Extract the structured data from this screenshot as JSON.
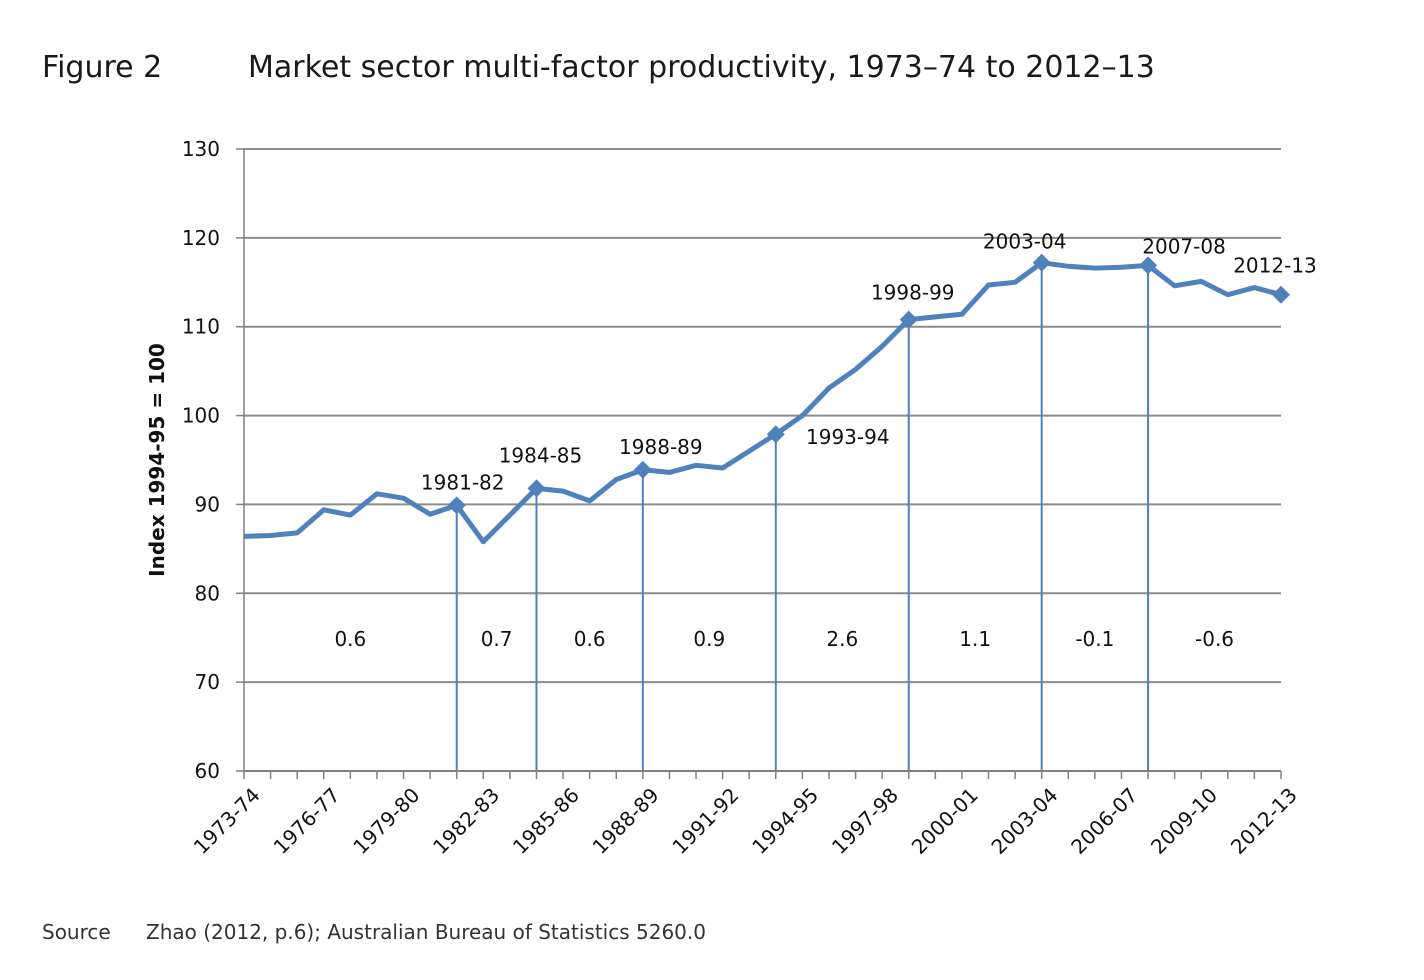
{
  "figure": {
    "label": "Figure 2",
    "title": "Market sector multi-factor productivity, 1973–74 to 2012–13"
  },
  "source": {
    "label": "Source",
    "text": "Zhao (2012, p.6); Australian Bureau of Statistics 5260.0"
  },
  "colors": {
    "series": "#4f81bd",
    "grid": "#8c8c8c",
    "axis": "#808080"
  },
  "chart_data": {
    "type": "line",
    "title": "Market sector multi-factor productivity, 1973–74 to 2012–13",
    "ylabel": "Index 1994-95 = 100",
    "xlabel": "",
    "ylim": [
      60,
      130
    ],
    "yticks": [
      60,
      70,
      80,
      90,
      100,
      110,
      120,
      130
    ],
    "grid": true,
    "x": [
      "1973-74",
      "1974-75",
      "1975-76",
      "1976-77",
      "1977-78",
      "1978-79",
      "1979-80",
      "1980-81",
      "1981-82",
      "1982-83",
      "1983-84",
      "1984-85",
      "1985-86",
      "1986-87",
      "1987-88",
      "1988-89",
      "1989-90",
      "1990-91",
      "1991-92",
      "1992-93",
      "1993-94",
      "1994-95",
      "1995-96",
      "1996-97",
      "1997-98",
      "1998-99",
      "1999-00",
      "2000-01",
      "2001-02",
      "2002-03",
      "2003-04",
      "2004-05",
      "2005-06",
      "2006-07",
      "2007-08",
      "2008-09",
      "2009-10",
      "2010-11",
      "2011-12",
      "2012-13"
    ],
    "xtick_labels": [
      "1973-74",
      "1976-77",
      "1979-80",
      "1982-83",
      "1985-86",
      "1988-89",
      "1991-92",
      "1994-95",
      "1997-98",
      "2000-01",
      "2003-04",
      "2006-07",
      "2009-10",
      "2012-13"
    ],
    "series": [
      {
        "values": [
          86.4,
          86.5,
          86.8,
          89.4,
          88.8,
          91.2,
          90.7,
          88.9,
          89.9,
          85.8,
          88.8,
          91.8,
          91.5,
          90.4,
          92.8,
          93.9,
          93.6,
          94.4,
          94.1,
          96.0,
          97.9,
          100.0,
          103.1,
          105.2,
          107.8,
          110.8,
          111.1,
          111.4,
          114.7,
          115.0,
          117.2,
          116.8,
          116.6,
          116.7,
          116.9,
          114.6,
          115.1,
          113.6,
          114.4,
          113.6
        ]
      }
    ],
    "peaks": [
      "1981-82",
      "1984-85",
      "1988-89",
      "1993-94",
      "1998-99",
      "2003-04",
      "2007-08",
      "2012-13"
    ],
    "peak_labels": [
      {
        "label": "1981-82",
        "x": "1981-82"
      },
      {
        "label": "1984-85",
        "x": "1984-85"
      },
      {
        "label": "1988-89",
        "x": "1988-89"
      },
      {
        "label": "1993-94",
        "x": "1993-94"
      },
      {
        "label": "1998-99",
        "x": "1998-99"
      },
      {
        "label": "2003-04",
        "x": "2003-04"
      },
      {
        "label": "2007-08",
        "x": "2007-08"
      },
      {
        "label": "2012-13",
        "x": "2012-13"
      }
    ],
    "cycle_dividers": [
      "1981-82",
      "1984-85",
      "1988-89",
      "1993-94",
      "1998-99",
      "2003-04",
      "2007-08"
    ],
    "cycle_growth": [
      "0.6",
      "0.7",
      "0.6",
      "0.9",
      "2.6",
      "1.1",
      "-0.1",
      "-0.6"
    ]
  }
}
